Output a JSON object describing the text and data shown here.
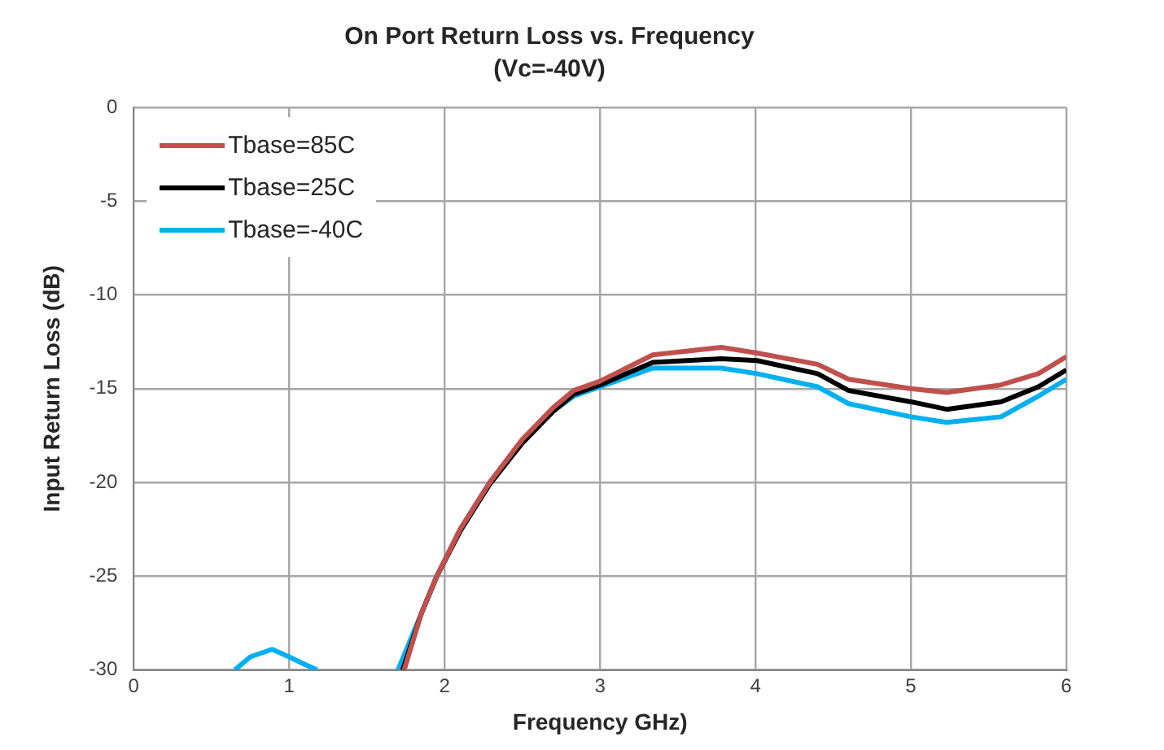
{
  "chart_data": {
    "type": "line",
    "title": "On Port Return Loss vs. Frequency",
    "subtitle": "(Vc=-40V)",
    "xlabel": "Frequency GHz)",
    "ylabel": "Input Return Loss (dB)",
    "xlim": [
      0,
      6
    ],
    "xticks": [
      0,
      1,
      2,
      3,
      4,
      5,
      6
    ],
    "ylim": [
      -30,
      0
    ],
    "yticks": [
      -30,
      -25,
      -20,
      -15,
      -10,
      -5,
      0
    ],
    "grid": true,
    "legend": "top left",
    "marker": "none",
    "line_style": "solid",
    "series": [
      {
        "name": "Tbase=85C",
        "color": "#c0504d",
        "x": [
          1.74,
          1.85,
          1.95,
          2.1,
          2.29,
          2.5,
          2.7,
          2.83,
          3.0,
          3.34,
          3.78,
          4.01,
          4.4,
          4.6,
          5.0,
          5.23,
          5.58,
          5.82,
          6.0
        ],
        "values": [
          -30,
          -27,
          -25,
          -22.5,
          -20,
          -17.7,
          -16.0,
          -15.1,
          -14.6,
          -13.2,
          -12.8,
          -13.1,
          -13.7,
          -14.5,
          -15.0,
          -15.2,
          -14.8,
          -14.2,
          -13.3
        ]
      },
      {
        "name": "Tbase=25C",
        "color": "#000000",
        "x": [
          1.73,
          1.85,
          1.95,
          2.1,
          2.29,
          2.5,
          2.7,
          2.83,
          3.0,
          3.34,
          3.78,
          4.01,
          4.4,
          4.6,
          5.0,
          5.23,
          5.58,
          5.82,
          6.0
        ],
        "values": [
          -30,
          -27,
          -25,
          -22.6,
          -20.1,
          -17.9,
          -16.2,
          -15.3,
          -14.8,
          -13.6,
          -13.4,
          -13.5,
          -14.2,
          -15.1,
          -15.7,
          -16.1,
          -15.7,
          -14.9,
          -14.0
        ]
      },
      {
        "name": "Tbase=-40C",
        "color": "#00b0f0",
        "x": [
          0.65,
          0.75,
          0.89,
          1.0,
          1.1,
          1.18,
          1.45,
          1.7,
          1.85,
          1.95,
          2.1,
          2.29,
          2.5,
          2.7,
          2.83,
          3.0,
          3.34,
          3.78,
          4.01,
          4.4,
          4.6,
          5.0,
          5.23,
          5.58,
          5.82,
          6.0
        ],
        "values": [
          -30,
          -29.3,
          -28.9,
          -29.3,
          -29.7,
          -30,
          null,
          -30,
          -27,
          -25,
          -22.5,
          -20,
          -17.8,
          -16.2,
          -15.4,
          -14.9,
          -13.9,
          -13.9,
          -14.2,
          -14.9,
          -15.8,
          -16.5,
          -16.8,
          -16.5,
          -15.4,
          -14.5
        ]
      }
    ]
  }
}
